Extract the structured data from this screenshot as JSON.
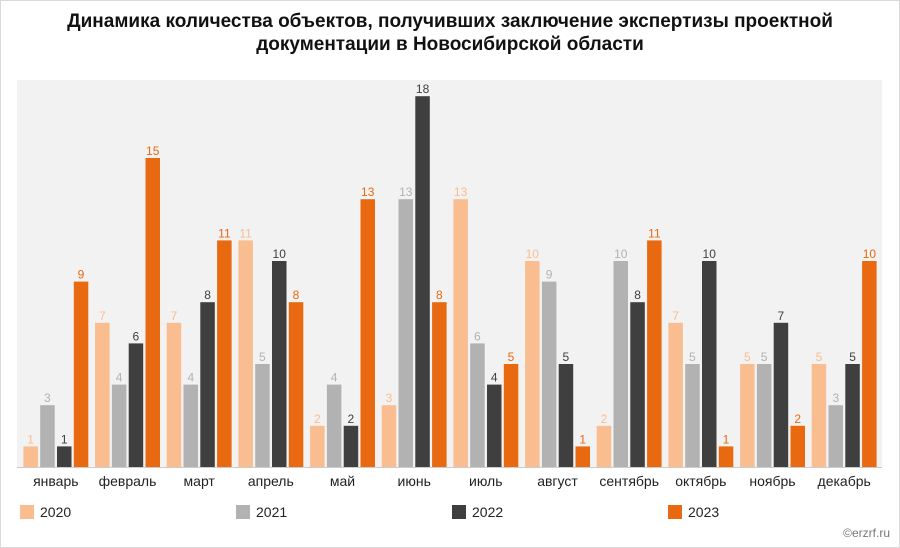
{
  "title": "Динамика количества объектов, получивших заключение экспертизы проектной документации в Новосибирской области",
  "watermark": "©erzrf.ru",
  "chart_data": {
    "type": "bar",
    "title": "Динамика количества объектов, получивших заключение экспертизы проектной документации в Новосибирской области",
    "categories": [
      "январь",
      "февраль",
      "март",
      "апрель",
      "май",
      "июнь",
      "июль",
      "август",
      "сентябрь",
      "октябрь",
      "ноябрь",
      "декабрь"
    ],
    "series": [
      {
        "name": "2020",
        "color": "#f9bd8f",
        "values": [
          1,
          7,
          7,
          11,
          2,
          3,
          13,
          10,
          2,
          7,
          5,
          5
        ]
      },
      {
        "name": "2021",
        "color": "#b2b2b2",
        "values": [
          3,
          4,
          4,
          5,
          4,
          13,
          6,
          9,
          10,
          5,
          5,
          3
        ]
      },
      {
        "name": "2022",
        "color": "#3f3f3f",
        "values": [
          1,
          6,
          8,
          10,
          2,
          18,
          4,
          5,
          8,
          10,
          7,
          5
        ]
      },
      {
        "name": "2023",
        "color": "#e8690f",
        "values": [
          9,
          15,
          11,
          8,
          13,
          8,
          5,
          1,
          11,
          1,
          2,
          10
        ]
      }
    ],
    "ylim": [
      0,
      18
    ],
    "grid": false,
    "legend": "bottom"
  }
}
